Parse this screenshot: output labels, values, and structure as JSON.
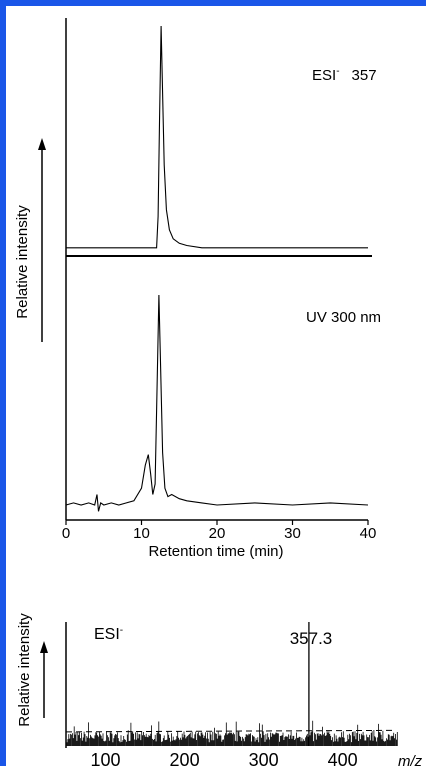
{
  "colors": {
    "frame": "#1a56e8",
    "ink": "#000000",
    "background": "#ffffff"
  },
  "chart_data": [
    {
      "type": "line",
      "panel": "upper chromatogram",
      "label_prefix": "ESI",
      "label_superscript": "-",
      "label_value": "357",
      "ylabel": "Relative intensity",
      "xlim": [
        0,
        40
      ],
      "series": [
        {
          "x": [
            0,
            12.0,
            12.2,
            12.4,
            12.6,
            12.8,
            13.0,
            13.3,
            13.7,
            14.2,
            15.0,
            16.0,
            18.0,
            40
          ],
          "y": [
            0.01,
            0.01,
            0.15,
            0.6,
            1.0,
            0.7,
            0.38,
            0.18,
            0.09,
            0.05,
            0.03,
            0.02,
            0.01,
            0.01
          ]
        }
      ]
    },
    {
      "type": "line",
      "panel": "UV chromatogram",
      "label": "UV 300 nm",
      "xlabel": "Retention time (min)",
      "xlim": [
        0,
        40
      ],
      "xticks": [
        "0",
        "10",
        "20",
        "30",
        "40"
      ],
      "series": [
        {
          "x": [
            0,
            1,
            2,
            3,
            3.8,
            4.1,
            4.3,
            4.6,
            5,
            6,
            7,
            8,
            9,
            10,
            10.5,
            10.9,
            11.2,
            11.5,
            11.8,
            12.0,
            12.3,
            12.5,
            12.8,
            13.1,
            13.5,
            14,
            15,
            16,
            18,
            20,
            25,
            30,
            35,
            40
          ],
          "y": [
            0.0,
            0.01,
            0.0,
            0.01,
            0.0,
            0.05,
            -0.03,
            0.01,
            0.0,
            0.01,
            0.0,
            0.01,
            0.02,
            0.08,
            0.19,
            0.24,
            0.15,
            0.05,
            0.1,
            0.45,
            1.0,
            0.7,
            0.25,
            0.08,
            0.04,
            0.05,
            0.03,
            0.02,
            0.01,
            0.0,
            0.01,
            0.0,
            0.01,
            0.0
          ]
        }
      ]
    },
    {
      "type": "bar",
      "panel": "mass spectrum",
      "label_prefix": "ESI",
      "label_superscript": "-",
      "ylabel": "Relative intensity",
      "peak_label": "357.3",
      "peak": {
        "x": 357.3,
        "y": 1.0
      },
      "xlim": [
        50,
        470
      ],
      "xticks": [
        "100",
        "200",
        "300",
        "400"
      ],
      "xunit": "m/z",
      "noise_level": 0.12
    }
  ]
}
